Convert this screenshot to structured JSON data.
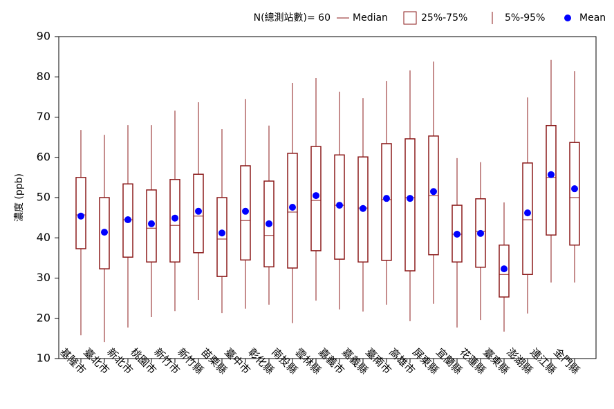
{
  "chart_data": {
    "type": "box",
    "y_label": "濃度 (ppb)",
    "legend_note": "N(總測站數)= 60",
    "legend": {
      "median": "Median",
      "box": "25%-75%",
      "whisker": "5%-95%",
      "mean": "Mean"
    },
    "color": "#8b1a1a",
    "mean_color": "#0000ff",
    "ylim": [
      10,
      90
    ],
    "yticks": [
      10,
      20,
      30,
      40,
      50,
      60,
      70,
      80,
      90
    ],
    "categories": [
      "基隆市",
      "臺北市",
      "新北市",
      "桃園市",
      "新竹市",
      "新竹縣",
      "苗栗縣",
      "臺中市",
      "彰化縣",
      "南投縣",
      "雲林縣",
      "嘉義市",
      "嘉義縣",
      "臺南市",
      "高雄市",
      "屏東縣",
      "宜蘭縣",
      "花蓮縣",
      "臺東縣",
      "澎湖縣",
      "連江縣",
      "金門縣"
    ],
    "whisker_low": [
      15.8,
      14.1,
      17.7,
      20.3,
      21.8,
      24.6,
      21.3,
      22.4,
      23.4,
      18.8,
      24.4,
      22.2,
      21.7,
      23.4,
      19.3,
      23.6,
      17.7,
      19.6,
      16.7,
      21.2,
      28.9,
      28.9
    ],
    "q1": [
      37.3,
      32.3,
      35.2,
      34.0,
      34.0,
      36.3,
      30.4,
      34.5,
      32.8,
      32.5,
      36.8,
      34.7,
      34.0,
      34.4,
      31.8,
      35.8,
      34.0,
      32.7,
      25.3,
      30.9,
      40.7,
      38.2
    ],
    "median": [
      45.7,
      50.0,
      44.5,
      42.4,
      43.1,
      45.4,
      39.7,
      44.3,
      40.6,
      46.4,
      49.3,
      48.1,
      47.4,
      49.5,
      50.0,
      50.5,
      40.9,
      41.6,
      30.9,
      44.5,
      55.0,
      50.0
    ],
    "q3": [
      55.0,
      50.0,
      53.4,
      51.9,
      54.5,
      55.8,
      50.0,
      57.9,
      54.1,
      61.0,
      62.7,
      60.6,
      60.1,
      63.4,
      64.6,
      65.3,
      48.1,
      49.7,
      38.2,
      58.6,
      67.9,
      63.7
    ],
    "whisker_high": [
      66.8,
      65.6,
      68.0,
      68.0,
      71.6,
      73.7,
      67.0,
      74.5,
      67.9,
      78.5,
      79.7,
      76.3,
      74.7,
      79.0,
      81.6,
      83.8,
      59.8,
      58.8,
      48.8,
      74.9,
      84.2,
      81.4
    ],
    "mean": [
      45.4,
      41.4,
      44.5,
      43.5,
      44.9,
      46.6,
      41.2,
      46.6,
      43.5,
      47.6,
      50.5,
      48.1,
      47.3,
      49.8,
      49.8,
      51.5,
      40.9,
      41.1,
      32.3,
      46.2,
      55.7,
      52.2
    ]
  }
}
